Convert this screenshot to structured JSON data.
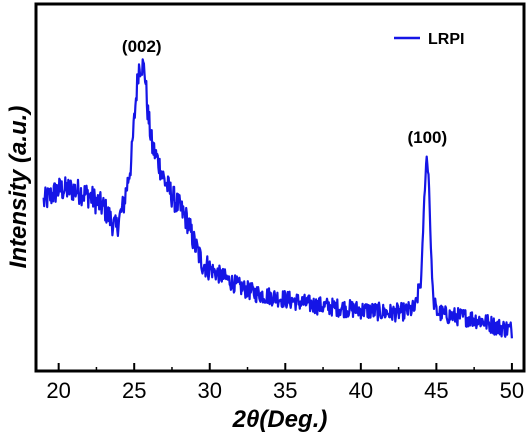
{
  "chart_data": {
    "type": "line",
    "xlabel": "2θ(Deg.)",
    "ylabel": "Intensity (a.u.)",
    "xlim": [
      18.5,
      50.8
    ],
    "ylim": [
      0,
      100
    ],
    "x_ticks": [
      "20",
      "25",
      "30",
      "35",
      "40",
      "45",
      "50"
    ],
    "y_ticks": [],
    "legend": {
      "position": "top-right"
    },
    "grid": false,
    "colors": {
      "series": "#1515e6",
      "axis": "#000000"
    },
    "series": [
      {
        "name": "LRPI",
        "x": [
          19.0,
          20.0,
          21.0,
          22.0,
          23.0,
          23.8,
          24.3,
          24.8,
          25.1,
          25.3,
          25.5,
          25.7,
          25.9,
          26.2,
          26.6,
          27.0,
          27.5,
          28.0,
          28.5,
          29.0,
          29.5,
          30.0,
          31.0,
          32.0,
          33.0,
          34.0,
          35.0,
          36.0,
          37.0,
          38.0,
          39.0,
          40.0,
          41.0,
          42.0,
          43.0,
          43.6,
          44.0,
          44.2,
          44.35,
          44.5,
          44.65,
          44.8,
          45.0,
          45.5,
          46.0,
          47.0,
          48.0,
          49.0,
          50.0
        ],
        "y": [
          47,
          51,
          51,
          49,
          45,
          38,
          46,
          60,
          80,
          91,
          92,
          90,
          76,
          65,
          60,
          54,
          49,
          45,
          41,
          33,
          27,
          25,
          22,
          19,
          17,
          16,
          15,
          14,
          13,
          12.5,
          12,
          11.5,
          11,
          10.5,
          11,
          12,
          22,
          48,
          62,
          55,
          30,
          15,
          11,
          10,
          9.5,
          9,
          8,
          6,
          5
        ]
      }
    ],
    "annotations": [
      {
        "text": "(002)",
        "x": 25.5
      },
      {
        "text": "(100)",
        "x": 44.4
      }
    ]
  }
}
